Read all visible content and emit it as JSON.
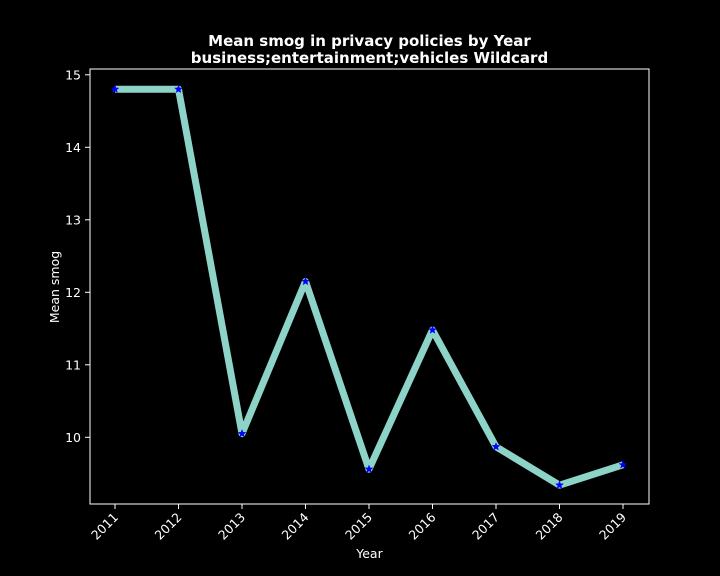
{
  "colors": {
    "background": "#000000",
    "line": "#8dd3c7",
    "marker": "#0000ff",
    "text": "#ffffff"
  },
  "chart_data": {
    "type": "line",
    "title": "Mean smog in privacy policies by Year",
    "subtitle": "business;entertainment;vehicles Wildcard",
    "xlabel": "Year",
    "ylabel": "Mean smog",
    "categories": [
      "2011",
      "2012",
      "2013",
      "2014",
      "2015",
      "2016",
      "2017",
      "2018",
      "2019"
    ],
    "series": [
      {
        "values": [
          14.8,
          14.8,
          10.05,
          12.15,
          9.56,
          11.48,
          9.87,
          9.34,
          9.62
        ]
      }
    ],
    "yticks": [
      10,
      11,
      12,
      13,
      14,
      15
    ],
    "ylim": [
      9.08,
      15.08
    ],
    "grid": false,
    "marker": "star"
  }
}
